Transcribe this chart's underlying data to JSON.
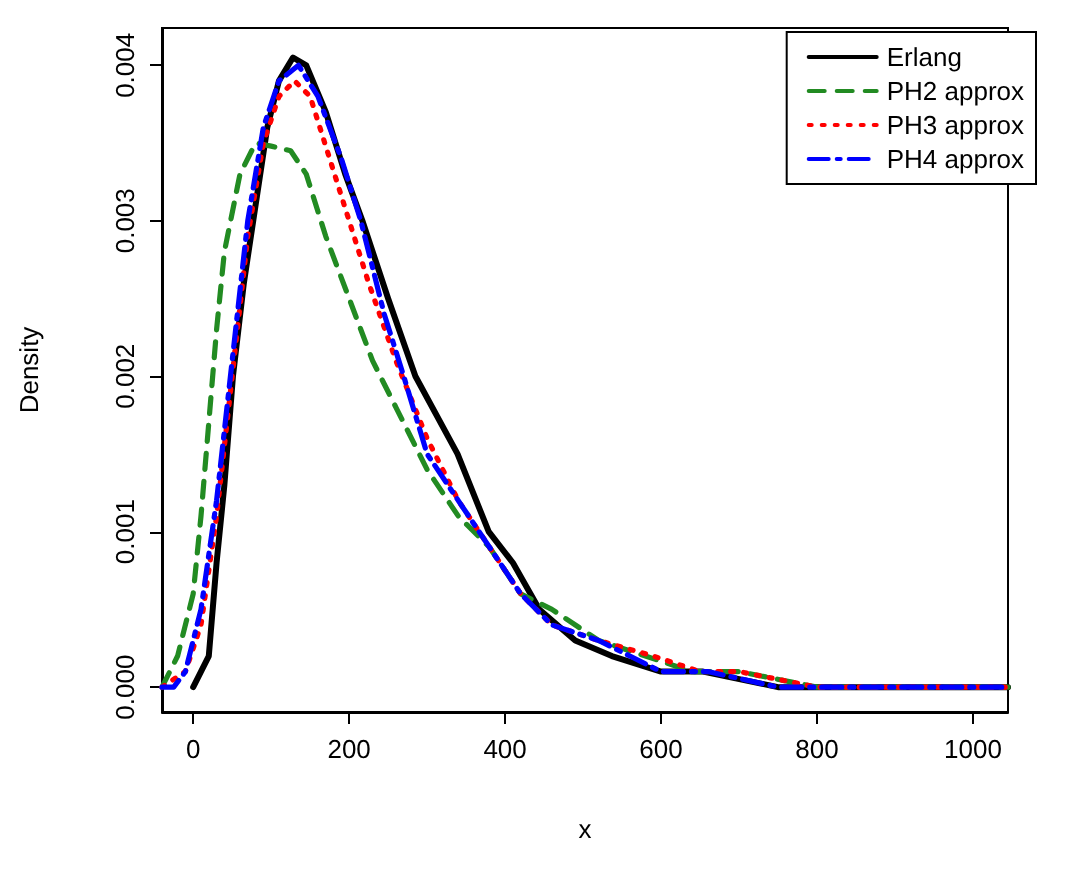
{
  "chart_data": {
    "type": "line",
    "xlabel": "x",
    "ylabel": "Density",
    "xlim": [
      -40,
      1045
    ],
    "ylim": [
      -0.00016,
      0.00424
    ],
    "xticks": [
      0,
      200,
      400,
      600,
      800,
      1000
    ],
    "yticks": [
      {
        "value": 0,
        "label": "0.000"
      },
      {
        "value": 0.001,
        "label": "0.001"
      },
      {
        "value": 0.002,
        "label": "0.002"
      },
      {
        "value": 0.003,
        "label": "0.003"
      },
      {
        "value": 0.004,
        "label": "0.004"
      }
    ],
    "grid": false,
    "legend": "top right",
    "marker": "none",
    "series": [
      {
        "name": "Erlang",
        "color": "#000000",
        "line_style": "solid",
        "x": [
          0,
          10,
          20,
          30,
          40,
          51,
          65,
          77,
          95,
          110,
          128,
          145,
          170,
          195,
          217,
          250,
          285,
          339,
          379,
          410,
          444,
          490,
          537,
          600,
          654,
          750,
          900,
          1045
        ],
        "values": [
          0,
          0.0001,
          0.0002,
          0.0008,
          0.0013,
          0.002,
          0.0026,
          0.003,
          0.0036,
          0.0039,
          0.00405,
          0.004,
          0.0037,
          0.0033,
          0.003,
          0.0025,
          0.002,
          0.0015,
          0.001,
          0.0008,
          0.0005,
          0.0003,
          0.0002,
          0.0001,
          0.0001,
          0,
          0,
          0
        ]
      },
      {
        "name": "PH2 approx",
        "color": "#228b22",
        "line_style": "dashed",
        "x": [
          -40,
          -20,
          0,
          10,
          20,
          30,
          40,
          60,
          80,
          100,
          125,
          145,
          170,
          200,
          230,
          260,
          300,
          340,
          380,
          420,
          460,
          520,
          580,
          640,
          700,
          800,
          900,
          1045
        ],
        "values": [
          0,
          0.0002,
          0.0006,
          0.0011,
          0.0017,
          0.0023,
          0.0028,
          0.0033,
          0.0035,
          0.00348,
          0.00345,
          0.0033,
          0.0029,
          0.0025,
          0.0021,
          0.0018,
          0.0014,
          0.0011,
          0.0009,
          0.0006,
          0.0005,
          0.0003,
          0.0002,
          0.0001,
          0.0001,
          0,
          0,
          0
        ]
      },
      {
        "name": "PH3 approx",
        "color": "#ff0000",
        "line_style": "dotted",
        "x": [
          -40,
          -10,
          10,
          30,
          50,
          70,
          90,
          110,
          130,
          150,
          175,
          200,
          225,
          260,
          300,
          340,
          380,
          420,
          460,
          520,
          590,
          650,
          700,
          800,
          1045
        ],
        "values": [
          0,
          0.0001,
          0.0004,
          0.0011,
          0.002,
          0.0029,
          0.0035,
          0.0038,
          0.0039,
          0.0038,
          0.0034,
          0.003,
          0.0026,
          0.0021,
          0.0016,
          0.0012,
          0.0009,
          0.0006,
          0.0004,
          0.0003,
          0.0002,
          0.0001,
          0.0001,
          0,
          0
        ]
      },
      {
        "name": "PH4 approx",
        "color": "#0000ff",
        "line_style": "dashdot",
        "x": [
          -40,
          -25,
          -10,
          10,
          30,
          50,
          70,
          90,
          110,
          135,
          160,
          190,
          215,
          245,
          270,
          300,
          340,
          380,
          420,
          460,
          520,
          560,
          600,
          660,
          750,
          900,
          1045
        ],
        "values": [
          0,
          0,
          0.0001,
          0.0005,
          0.0012,
          0.0021,
          0.003,
          0.0036,
          0.0039,
          0.004,
          0.0038,
          0.0034,
          0.003,
          0.0024,
          0.002,
          0.0015,
          0.0012,
          0.0009,
          0.0006,
          0.0004,
          0.0003,
          0.0002,
          0.0001,
          0.0001,
          0,
          0,
          0
        ]
      }
    ]
  }
}
